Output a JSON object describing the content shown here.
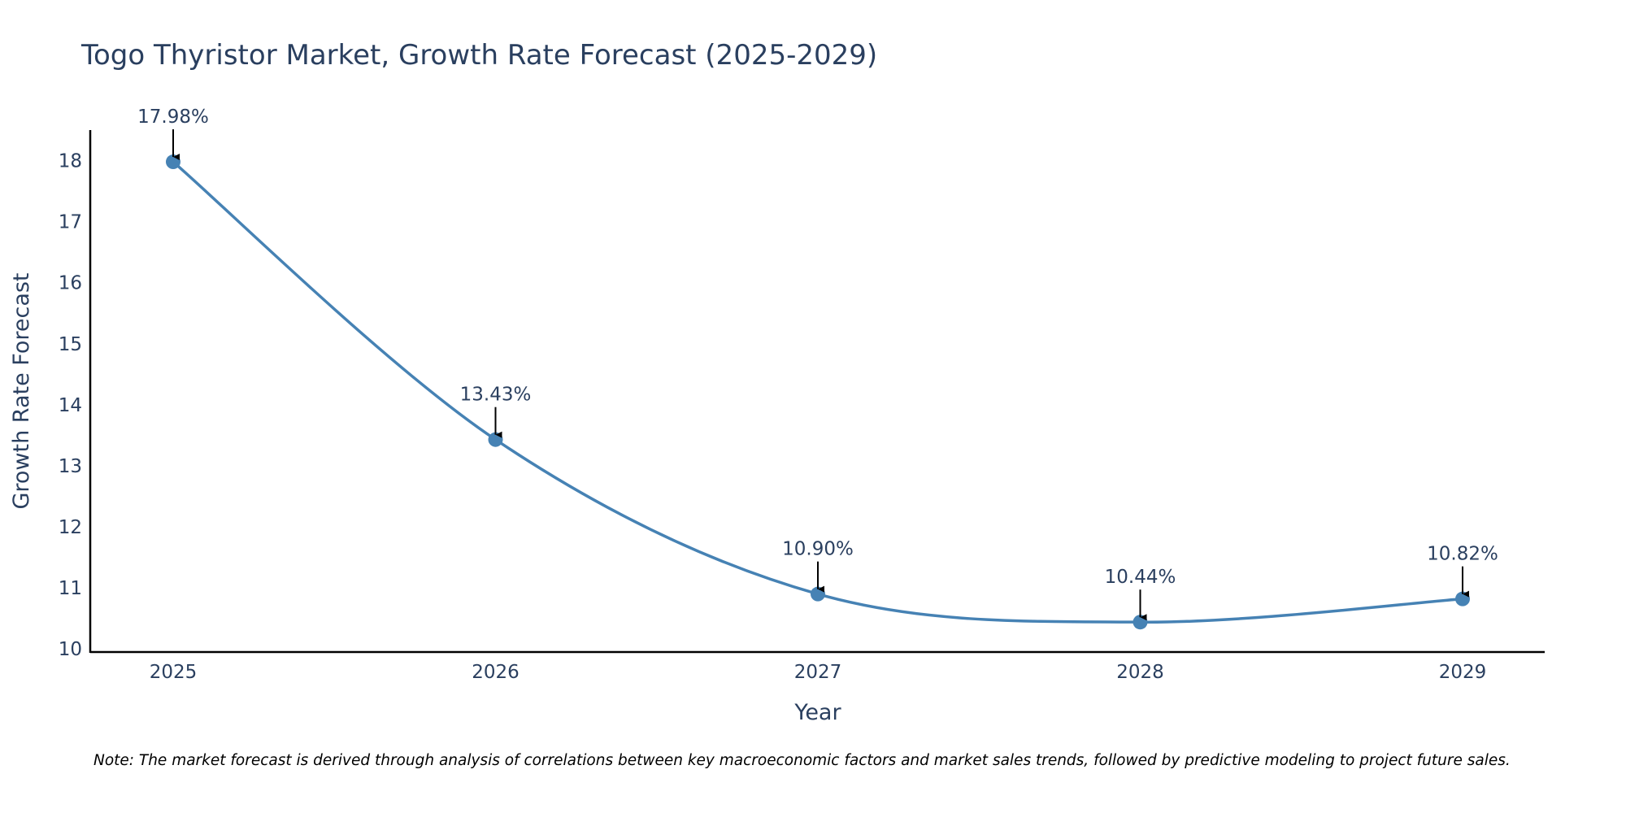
{
  "chart_data": {
    "type": "line",
    "title": "Togo Thyristor Market, Growth Rate Forecast (2025-2029)",
    "xlabel": "Year",
    "ylabel": "Growth Rate Forecast",
    "categories": [
      "2025",
      "2026",
      "2027",
      "2028",
      "2029"
    ],
    "series": [
      {
        "name": "Growth Rate Forecast",
        "values": [
          17.98,
          13.43,
          10.9,
          10.44,
          10.82
        ],
        "labels": [
          "17.98%",
          "13.43%",
          "10.90%",
          "10.44%",
          "10.82%"
        ]
      }
    ],
    "ylim": [
      9.95,
      18.5
    ],
    "yticks": [
      10,
      11,
      12,
      13,
      14,
      15,
      16,
      17,
      18
    ],
    "ytick_labels": [
      "10",
      "11",
      "12",
      "13",
      "14",
      "15",
      "16",
      "17",
      "18"
    ],
    "grid": false,
    "line_shape": "spline",
    "note": "Note: The market forecast is derived through analysis of correlations between key macroeconomic factors and market sales trends, followed by predictive modeling to project future sales."
  },
  "colors": {
    "line": "#4682b4",
    "marker": "#4682b4",
    "text": "#2a3f5f",
    "axis": "#000000",
    "arrow": "#000000",
    "background": "#ffffff"
  }
}
